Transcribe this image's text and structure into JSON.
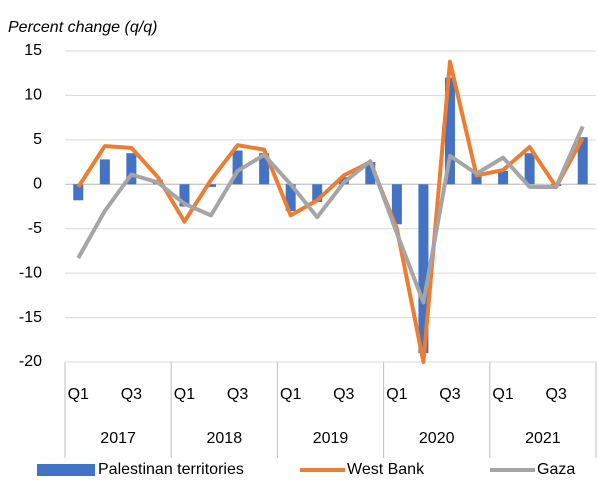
{
  "chart_data": {
    "type": "bar_line",
    "subtitle": "Percent change (q/q)",
    "categories": [
      "Q1",
      null,
      "Q3",
      null,
      "Q1",
      null,
      "Q3",
      null,
      "Q1",
      null,
      "Q3",
      null,
      "Q1",
      null,
      "Q3",
      null,
      "Q1",
      null,
      "Q3",
      null
    ],
    "groups": [
      "2017",
      "2018",
      "2019",
      "2020",
      "2021"
    ],
    "series": [
      {
        "name": "Palestinan territories",
        "color": "#4472c4",
        "kind": "bar",
        "values": [
          -1.8,
          2.8,
          3.5,
          0.5,
          -2.5,
          -0.3,
          3.8,
          3.5,
          -3,
          -2,
          0.8,
          2.5,
          -4.5,
          -19,
          12,
          1.5,
          1.5,
          3.5,
          -0.2,
          5.3
        ]
      },
      {
        "name": "West Bank",
        "color": "#ed7d31",
        "kind": "line",
        "values": [
          -0.3,
          4.3,
          4.1,
          0.8,
          -4.2,
          0.5,
          4.4,
          3.9,
          -3.5,
          -1.8,
          1.0,
          2.5,
          -5,
          -20,
          13.8,
          1.0,
          1.6,
          4.2,
          -0.3,
          5.2
        ]
      },
      {
        "name": "Gaza",
        "color": "#a5a5a5",
        "kind": "line",
        "values": [
          -8.3,
          -3,
          1.1,
          0.2,
          -2.2,
          -3.5,
          1.5,
          3.3,
          0,
          -3.7,
          0.2,
          2.6,
          -5.5,
          -13.3,
          3.2,
          1.2,
          3,
          -0.3,
          -0.3,
          6.5
        ]
      }
    ],
    "ylim": [
      -20,
      15
    ],
    "yticks": [
      -20,
      -15,
      -10,
      -5,
      0,
      5,
      10,
      15
    ],
    "grid": true,
    "legend": "bottom"
  }
}
